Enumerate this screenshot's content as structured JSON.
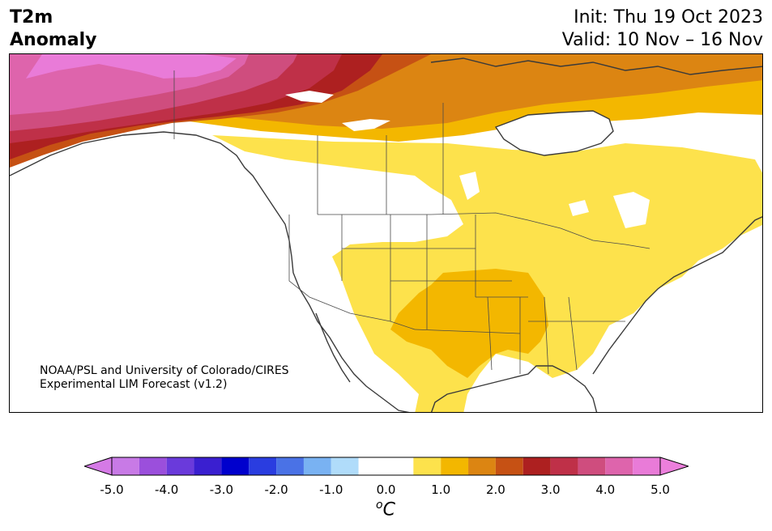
{
  "header": {
    "title_line1": "T2m",
    "title_line2": "Anomaly",
    "init": "Init: Thu 19 Oct 2023",
    "valid": "Valid: 10 Nov – 16 Nov"
  },
  "credit": {
    "line1": "NOAA/PSL and University of Colorado/CIRES",
    "line2": "Experimental LIM Forecast (v1.2)"
  },
  "colorbar": {
    "unit": "C",
    "unit_superscript": "o",
    "bins": [
      {
        "from": -5.0,
        "to": -4.5,
        "color": "#c87ae6"
      },
      {
        "from": -4.5,
        "to": -4.0,
        "color": "#9b4fdc"
      },
      {
        "from": -4.0,
        "to": -3.5,
        "color": "#6a3adb"
      },
      {
        "from": -3.5,
        "to": -3.0,
        "color": "#3a1fd0"
      },
      {
        "from": -3.0,
        "to": -2.5,
        "color": "#0000cd"
      },
      {
        "from": -2.5,
        "to": -2.0,
        "color": "#2a3de0"
      },
      {
        "from": -2.0,
        "to": -1.5,
        "color": "#4a72e6"
      },
      {
        "from": -1.5,
        "to": -1.0,
        "color": "#79b2f2"
      },
      {
        "from": -1.0,
        "to": -0.5,
        "color": "#b0dcfa"
      },
      {
        "from": -0.5,
        "to": 0.5,
        "color": "#ffffff"
      },
      {
        "from": 0.5,
        "to": 1.0,
        "color": "#fde24c"
      },
      {
        "from": 1.0,
        "to": 1.5,
        "color": "#f3b700"
      },
      {
        "from": 1.5,
        "to": 2.0,
        "color": "#dc8512"
      },
      {
        "from": 2.0,
        "to": 2.5,
        "color": "#c65114"
      },
      {
        "from": 2.5,
        "to": 3.0,
        "color": "#ad2020"
      },
      {
        "from": 3.0,
        "to": 3.5,
        "color": "#bf3048"
      },
      {
        "from": 3.5,
        "to": 4.0,
        "color": "#cf4d7e"
      },
      {
        "from": 4.0,
        "to": 4.5,
        "color": "#de64ac"
      },
      {
        "from": 4.5,
        "to": 5.0,
        "color": "#e97bd8"
      }
    ],
    "under_color": "#d57ae6",
    "over_color": "#ec7fdc",
    "tick_values": [
      -5.0,
      -4.0,
      -3.0,
      -2.0,
      -1.0,
      0.0,
      1.0,
      2.0,
      3.0,
      4.0,
      5.0
    ],
    "tick_labels": [
      "-5.0",
      "-4.0",
      "-3.0",
      "-2.0",
      "-1.0",
      "0.0",
      "1.0",
      "2.0",
      "3.0",
      "4.0",
      "5.0"
    ]
  }
}
